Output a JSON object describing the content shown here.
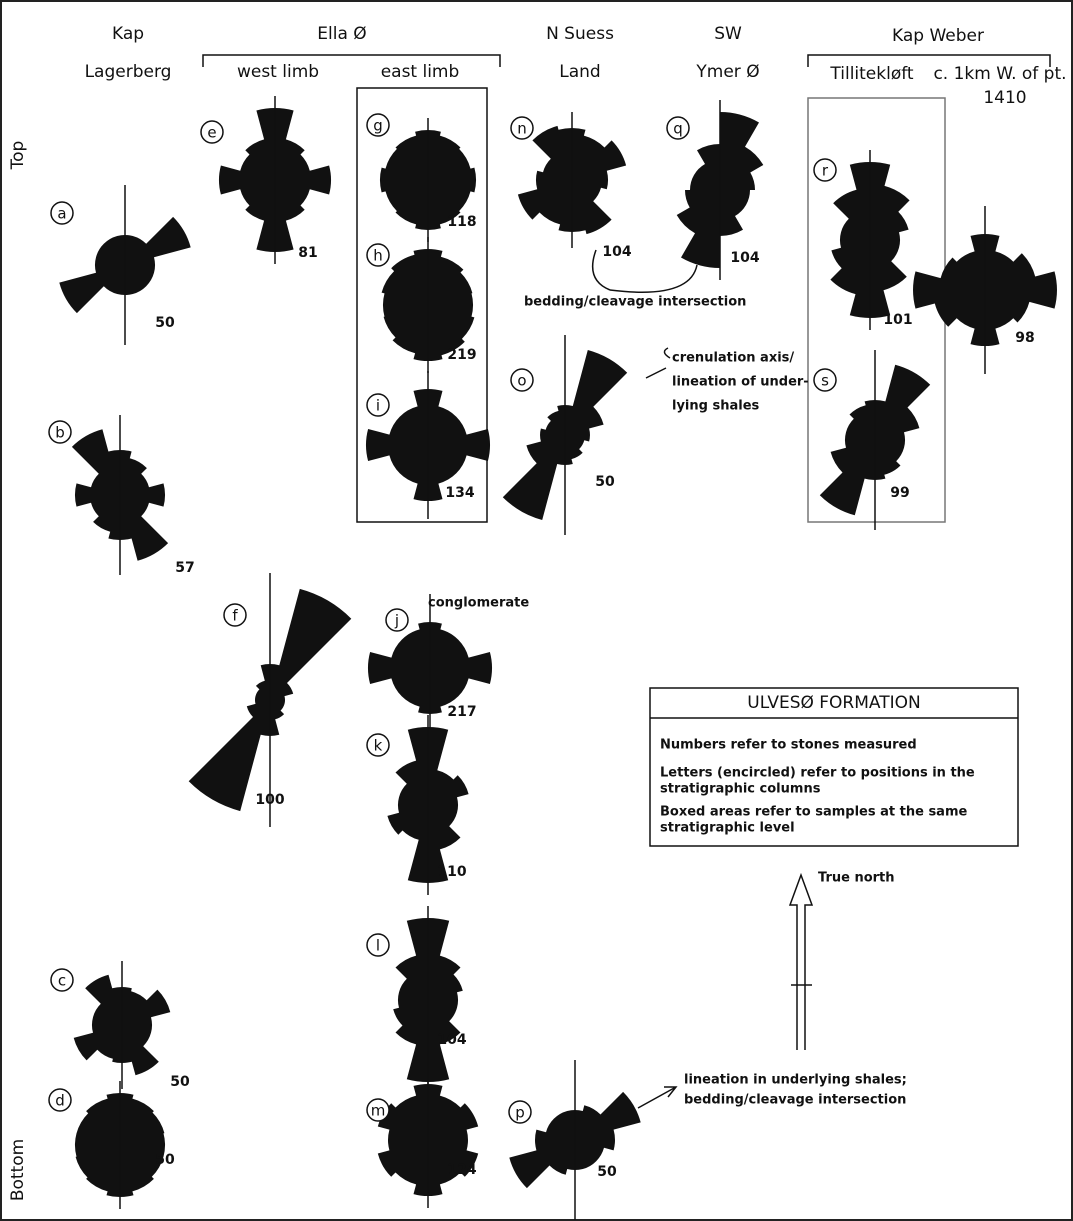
{
  "header": {
    "kap_lagerberg": [
      "Kap",
      "Lagerberg"
    ],
    "ella": "Ella Ø",
    "west_limb": "west limb",
    "east_limb": "east limb",
    "n_suess": [
      "N Suess",
      "Land"
    ],
    "sw_ymer": [
      "SW",
      "Ymer Ø"
    ],
    "kap_weber": "Kap Weber",
    "tillitekloft": "Tillitekløft",
    "c_1km": [
      "c. 1km W. of pt.",
      "1410"
    ]
  },
  "axis": {
    "top": "Top",
    "bottom": "Bottom"
  },
  "samples": [
    {
      "letter": "a",
      "count": 50
    },
    {
      "letter": "b",
      "count": 57
    },
    {
      "letter": "c",
      "count": 50
    },
    {
      "letter": "d",
      "count": 50
    },
    {
      "letter": "e",
      "count": 81
    },
    {
      "letter": "f",
      "count": 100
    },
    {
      "letter": "g",
      "count": 118
    },
    {
      "letter": "h",
      "count": 219
    },
    {
      "letter": "i",
      "count": 134
    },
    {
      "letter": "j",
      "count": 217
    },
    {
      "letter": "k",
      "count": 110
    },
    {
      "letter": "l",
      "count": 104
    },
    {
      "letter": "m",
      "count": 124
    },
    {
      "letter": "n",
      "count": 104
    },
    {
      "letter": "o",
      "count": 50
    },
    {
      "letter": "p",
      "count": 50
    },
    {
      "letter": "q",
      "count": 104
    },
    {
      "letter": "r",
      "count": 101
    },
    {
      "letter": "s",
      "count": 99
    },
    {
      "count": 98
    }
  ],
  "annotations": {
    "bedding": "bedding/cleavage intersection",
    "crenulation": [
      "crenulation axis/",
      "lineation of under-",
      "lying shales"
    ],
    "conglomerate": "conglomerate",
    "lineation": [
      "lineation in underlying shales;",
      "bedding/cleavage intersection"
    ]
  },
  "legend": {
    "title": "ULVESØ FORMATION",
    "items": [
      [
        "Numbers refer to stones measured"
      ],
      [
        "Letters (encircled) refer to positions in the",
        "stratigraphic columns"
      ],
      [
        "Boxed areas refer to samples at the same",
        "stratigraphic level"
      ]
    ]
  },
  "north": "True north"
}
